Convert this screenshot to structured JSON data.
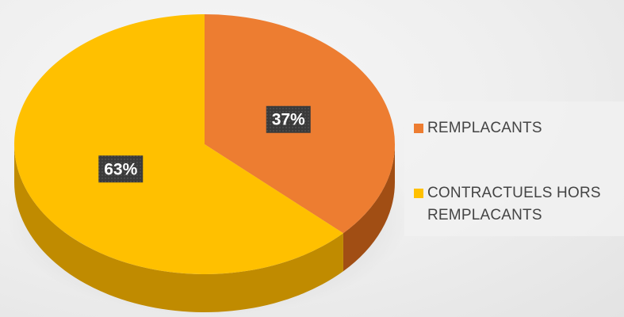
{
  "chart_data": {
    "type": "pie",
    "style": "3d",
    "title": "",
    "slices": [
      {
        "label": "REMPLACANTS",
        "value": 37,
        "display": "37%",
        "color": "#ED7D31",
        "side_color": "#A14E14"
      },
      {
        "label": "CONTRACTUELS HORS REMPLACANTS",
        "value": 63,
        "display": "63%",
        "color": "#FFC000",
        "side_color": "#C08B00"
      }
    ],
    "start_angle": "12 o'clock",
    "direction": "clockwise",
    "legend_position": "right",
    "data_label_background": "#3F3F3F"
  }
}
